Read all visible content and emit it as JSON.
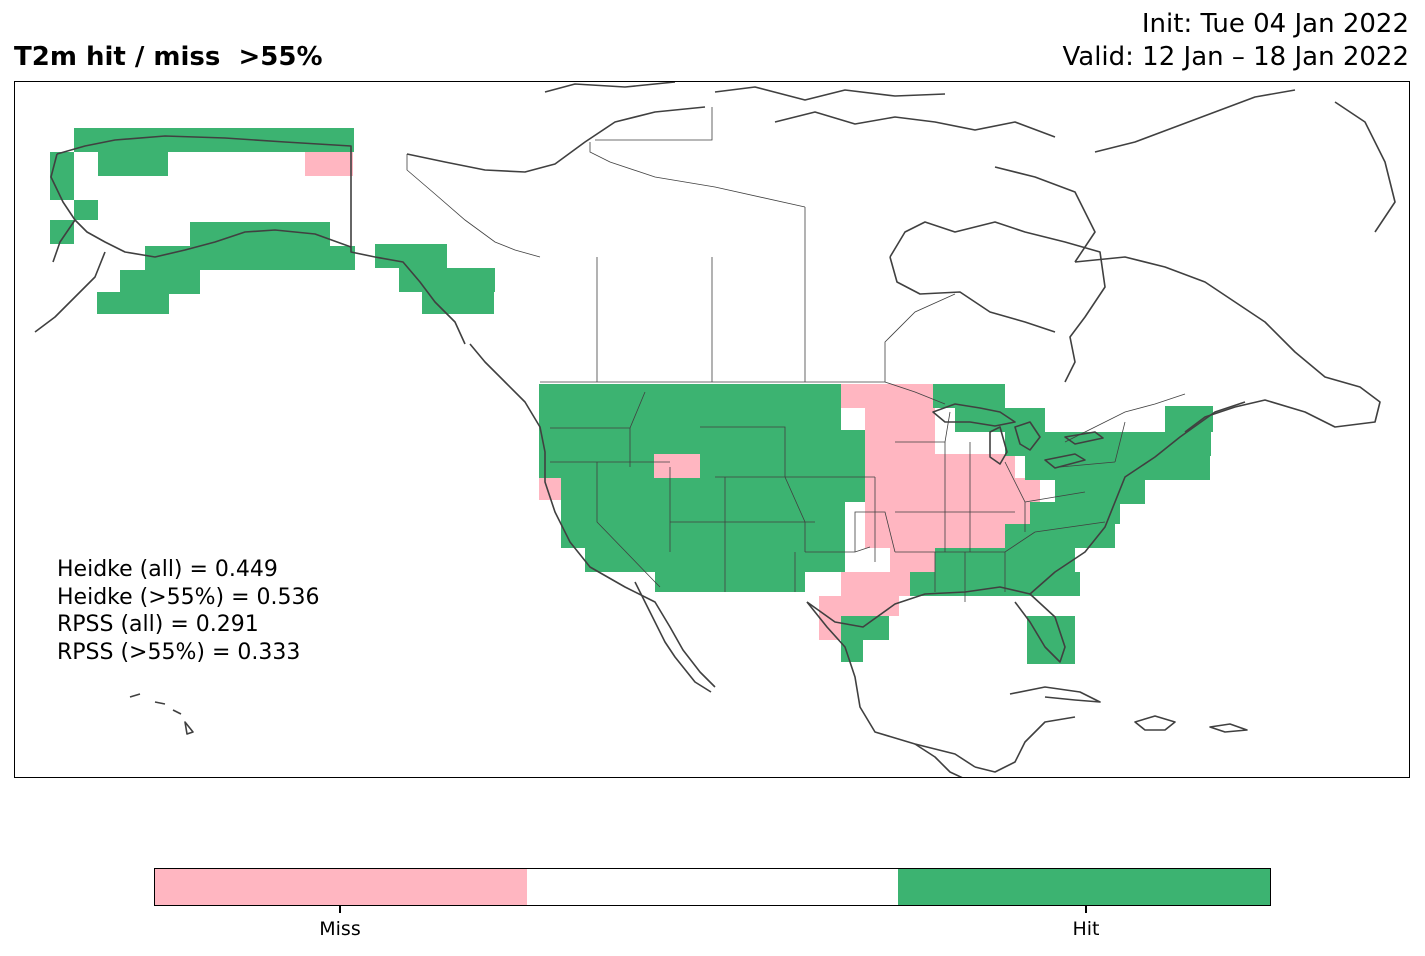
{
  "title": "T2m hit / miss  >55%",
  "init": "Init: Tue 04 Jan 2022",
  "valid": "Valid: 12 Jan – 18 Jan 2022",
  "colors": {
    "miss": "#ffb6c1",
    "neutral": "#ffffff",
    "hit": "#3cb371",
    "coast": "#404040"
  },
  "stats": [
    "Heidke (all) = 0.449",
    "Heidke (>55%) = 0.536",
    "RPSS (all) = 0.291",
    "RPSS (>55%) = 0.333"
  ],
  "colorbar": {
    "labels": [
      "Miss",
      "Hit"
    ]
  },
  "map_data": {
    "region": "North America",
    "categories": [
      "Miss",
      "Neutral",
      "Hit"
    ]
  }
}
